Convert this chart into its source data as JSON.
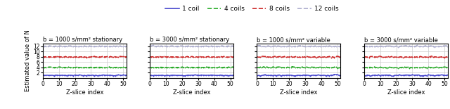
{
  "subplots": [
    {
      "title": "b = 1000 s/mm² stationary"
    },
    {
      "title": "b = 3000 s/mm² stationary"
    },
    {
      "title": "b = 1000 s/mm² variable"
    },
    {
      "title": "b = 3000 s/mm² variable"
    }
  ],
  "legend_labels": [
    "1 coil",
    "4 coils",
    "8 coils",
    "12 coils"
  ],
  "line_colors": [
    "#4444cc",
    "#22aa22",
    "#cc2222",
    "#aaaacc"
  ],
  "line_styles": [
    "-",
    "--",
    "--",
    "--"
  ],
  "coil_values": [
    1,
    4,
    8,
    12
  ],
  "x_min": 0,
  "x_max": 52,
  "y_min": 0,
  "y_max": 13,
  "y_ticks": [
    2,
    4,
    6,
    8,
    10,
    12
  ],
  "x_ticks": [
    0,
    10,
    20,
    30,
    40,
    50
  ],
  "xlabel": "Z-slice index",
  "ylabel": "Estimated value of N",
  "n_slices": 53,
  "noise_scale_stationary": 0.08,
  "noise_scale_variable": 0.12
}
